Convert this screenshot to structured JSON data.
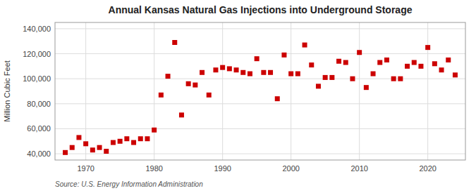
{
  "chart_data": {
    "type": "scatter",
    "title": "Annual Kansas Natural Gas Injections into Underground Storage",
    "ylabel": "Million Cubic Feet",
    "source": "Source: U.S. Energy Information Administration",
    "x": [
      1967,
      1968,
      1969,
      1970,
      1971,
      1972,
      1973,
      1974,
      1975,
      1976,
      1977,
      1978,
      1979,
      1980,
      1981,
      1982,
      1983,
      1984,
      1985,
      1986,
      1987,
      1988,
      1989,
      1990,
      1991,
      1992,
      1993,
      1994,
      1995,
      1996,
      1997,
      1998,
      1999,
      2000,
      2001,
      2002,
      2003,
      2004,
      2005,
      2006,
      2007,
      2008,
      2009,
      2010,
      2011,
      2012,
      2013,
      2014,
      2015,
      2016,
      2017,
      2018,
      2019,
      2020,
      2021,
      2022,
      2023,
      2024
    ],
    "values": [
      41000,
      45000,
      53000,
      48000,
      43000,
      45000,
      42000,
      49000,
      50000,
      52000,
      49000,
      52000,
      52000,
      59000,
      87000,
      102000,
      129000,
      71000,
      96000,
      95000,
      105000,
      87000,
      107000,
      109000,
      108000,
      107000,
      105000,
      104000,
      116000,
      105000,
      105000,
      84000,
      119000,
      104000,
      104000,
      127000,
      111000,
      94000,
      101000,
      101000,
      114000,
      113000,
      100000,
      121000,
      93000,
      104000,
      113000,
      115000,
      100000,
      100000,
      110000,
      113000,
      110000,
      125000,
      112000,
      107000,
      115000,
      103000
    ],
    "color": "#cc0000",
    "marker": "square",
    "xlim": [
      1965.5,
      2025.5
    ],
    "xticks": [
      1970,
      1980,
      1990,
      2000,
      2010,
      2020
    ],
    "ylim": [
      35000,
      145000
    ],
    "yticks": [
      {
        "value": 40000,
        "label": "40,000"
      },
      {
        "value": 60000,
        "label": "60,000"
      },
      {
        "value": 80000,
        "label": "80,000"
      },
      {
        "value": 100000,
        "label": "100,000"
      },
      {
        "value": 120000,
        "label": "120,000"
      },
      {
        "value": 140000,
        "label": "140,000"
      }
    ],
    "grid": true
  }
}
